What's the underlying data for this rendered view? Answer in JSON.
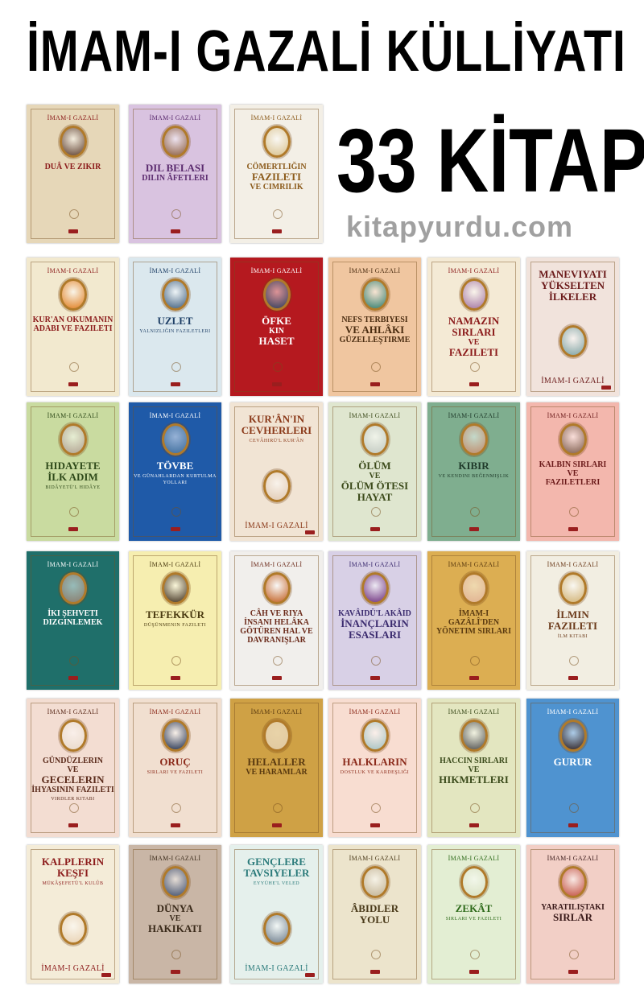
{
  "headline": "İMAM-I GAZALİ KÜLLİYATI",
  "count_label": "33 KİTAP",
  "watermark": "kitapyurdu.com",
  "author": "İMAM-I GAZALİ",
  "books": [
    {
      "title": [
        "Duâ ve Zikir"
      ],
      "sub": "",
      "bg": "#e6d7b8",
      "color": "#8b1a1a",
      "medal": "#5a3a2a"
    },
    {
      "title": [
        "Dil Belası",
        "Dilin Âfetleri"
      ],
      "sub": "",
      "bg": "#d9c3e0",
      "color": "#5a2a6e",
      "medal": "#8a5a3a"
    },
    {
      "title": [
        "Cömertliğin",
        "Fazileti",
        "ve Cimrilik"
      ],
      "sub": "",
      "bg": "#f3efe6",
      "color": "#8b5a1a",
      "medal": "#d8c08a"
    },
    {
      "title": [
        "Kur'an Okumanın",
        "Adabı ve Fazileti"
      ],
      "sub": "",
      "bg": "#f2e9cf",
      "color": "#8b1a1a",
      "medal": "#e07a1a"
    },
    {
      "title": [
        "Uzlet"
      ],
      "sub": "Yalnızlığın Faziletleri",
      "bg": "#dbe8ee",
      "color": "#1e3f66",
      "medal": "#3a5a7a"
    },
    {
      "title": [
        "Öfke",
        "Kin",
        "Haset"
      ],
      "sub": "",
      "bg": "#b5191f",
      "color": "#ffffff",
      "medal": "#2a3a5a"
    },
    {
      "title": [
        "Nefs Terbiyesi",
        "ve Ahlâkı",
        "Güzelleştirme"
      ],
      "sub": "",
      "bg": "#f0c6a0",
      "color": "#4a2c10",
      "medal": "#2a7a6a"
    },
    {
      "title": [
        "Namazın",
        "Sırları",
        "ve",
        "Fazileti"
      ],
      "sub": "",
      "bg": "#f4ead5",
      "color": "#8b1a1a",
      "medal": "#a070a0"
    },
    {
      "title": [
        "Maneviyatı",
        "Yükselten",
        "İlkeler"
      ],
      "sub": "",
      "bg": "#f1e3dc",
      "color": "#6b1a1a",
      "medal": "#7aa0a0",
      "author_bottom": true
    },
    {
      "title": [
        "Hidayete",
        "İlk Adım"
      ],
      "sub": "Bidâyetü'l Hidâye",
      "bg": "#c9dba0",
      "color": "#2f4a1a",
      "medal": "#b0a090"
    },
    {
      "title": [
        "Tövbe"
      ],
      "sub": "ve Günahlardan Kurtulma Yolları",
      "bg": "#1f5aa8",
      "color": "#ffffff",
      "medal": "#3a6a9a"
    },
    {
      "title": [
        "Kur'ân'ın",
        "Cevherleri"
      ],
      "sub": "Cevâhirü'l Kur'ân",
      "bg": "#f1e4d4",
      "color": "#8b3a1a",
      "medal": "#e0c8b0",
      "author_bottom": true
    },
    {
      "title": [
        "Ölüm",
        "ve",
        "Ölüm Ötesi",
        "Hayat"
      ],
      "sub": "",
      "bg": "#dfe6cf",
      "color": "#3b4a1a",
      "medal": "#c0c8c0"
    },
    {
      "title": [
        "Kibir"
      ],
      "sub": "ve Kendini Beğenmişlik",
      "bg": "#7fae8f",
      "color": "#1f3a2a",
      "medal": "#c08a6a"
    },
    {
      "title": [
        "Kalbin Sırları",
        "ve",
        "Faziletleri"
      ],
      "sub": "",
      "bg": "#f3b7ad",
      "color": "#6b1a1a",
      "medal": "#7a5a4a"
    },
    {
      "title": [
        "İki Şehveti",
        "Dizginlemek"
      ],
      "sub": "",
      "bg": "#1f6f6a",
      "color": "#ffffff",
      "medal": "#8a7a6a"
    },
    {
      "title": [
        "Tefekkür"
      ],
      "sub": "Düşünmenin Fazileti",
      "bg": "#f6eeb0",
      "color": "#4a3a10",
      "medal": "#3a2a1a"
    },
    {
      "title": [
        "Câh ve Riya",
        "İnsanı Helâka",
        "Götüren Hal ve",
        "Davranışlar"
      ],
      "sub": "",
      "bg": "#f1efec",
      "color": "#6b2a1a",
      "medal": "#c05a1a"
    },
    {
      "title": [
        "Kavâidü'l Akâid",
        "İnançların",
        "Esasları"
      ],
      "sub": "",
      "bg": "#d8d0e6",
      "color": "#3a2a6e",
      "medal": "#6a2a7a"
    },
    {
      "title": [
        "İmam-ı Gazâlî'den",
        "Yönetim Sırları"
      ],
      "sub": "",
      "bg": "#dcae52",
      "color": "#5a3a10",
      "medal": "#e0b090"
    },
    {
      "title": [
        "İlmin",
        "Fazileti"
      ],
      "sub": "İlm Kitabı",
      "bg": "#f2eee2",
      "color": "#6b3a1a",
      "medal": "#d0b070"
    },
    {
      "title": [
        "Gündüzlerin",
        "ve",
        "Gecelerin",
        "İhyasının Fazileti"
      ],
      "sub": "Virdler Kitabı",
      "bg": "#f3ddd2",
      "color": "#5a2a1a",
      "medal": "#e8d8c8"
    },
    {
      "title": [
        "Oruç"
      ],
      "sub": "Sırları ve Fazileti",
      "bg": "#f1dfd0",
      "color": "#8b2a1a",
      "medal": "#1a2a4a"
    },
    {
      "title": [
        "Helaller",
        "ve Haramlar"
      ],
      "sub": "",
      "bg": "#cfa145",
      "color": "#5a3a10",
      "medal": "#e0c8a0"
    },
    {
      "title": [
        "Halkların"
      ],
      "sub": "Dostluk ve Kardeşliği",
      "bg": "#f8ddd1",
      "color": "#8b2a1a",
      "medal": "#a0c0c0"
    },
    {
      "title": [
        "Haccın Sırları",
        "ve",
        "Hikmetleri"
      ],
      "sub": "",
      "bg": "#e3e6c0",
      "color": "#3a4a1a",
      "medal": "#4a4a4a"
    },
    {
      "title": [
        "Gurur"
      ],
      "sub": "",
      "bg": "#4f93d0",
      "color": "#ffffff",
      "medal": "#2a1a1a"
    },
    {
      "title": [
        "Kalplerin",
        "Keşfi"
      ],
      "sub": "Mükâşefetü'l Kulûb",
      "bg": "#f4ecd8",
      "color": "#8b1a1a",
      "medal": "#e8d0b0",
      "author_bottom": true
    },
    {
      "title": [
        "Dünya",
        "ve",
        "Hakikati"
      ],
      "sub": "",
      "bg": "#c9b6a6",
      "color": "#3a2a1a",
      "medal": "#3a4a6a"
    },
    {
      "title": [
        "Gençlere",
        "Tavsiyeler"
      ],
      "sub": "Eyyühe'l Veled",
      "bg": "#e5f0ec",
      "color": "#2a7a7a",
      "medal": "#6a7a8a",
      "author_bottom": true
    },
    {
      "title": [
        "Âbidler",
        "Yolu"
      ],
      "sub": "",
      "bg": "#ece4cc",
      "color": "#4a3a1a",
      "medal": "#c0b090"
    },
    {
      "title": [
        "Zekât"
      ],
      "sub": "Sırları ve Fazileti",
      "bg": "#e3eed3",
      "color": "#2e6a1a",
      "medal": "#d8e0c0"
    },
    {
      "title": [
        "Yaratılıştaki",
        "Sırlar"
      ],
      "sub": "",
      "bg": "#f2cfc6",
      "color": "#3a1a1a",
      "medal": "#c04a3a"
    }
  ]
}
